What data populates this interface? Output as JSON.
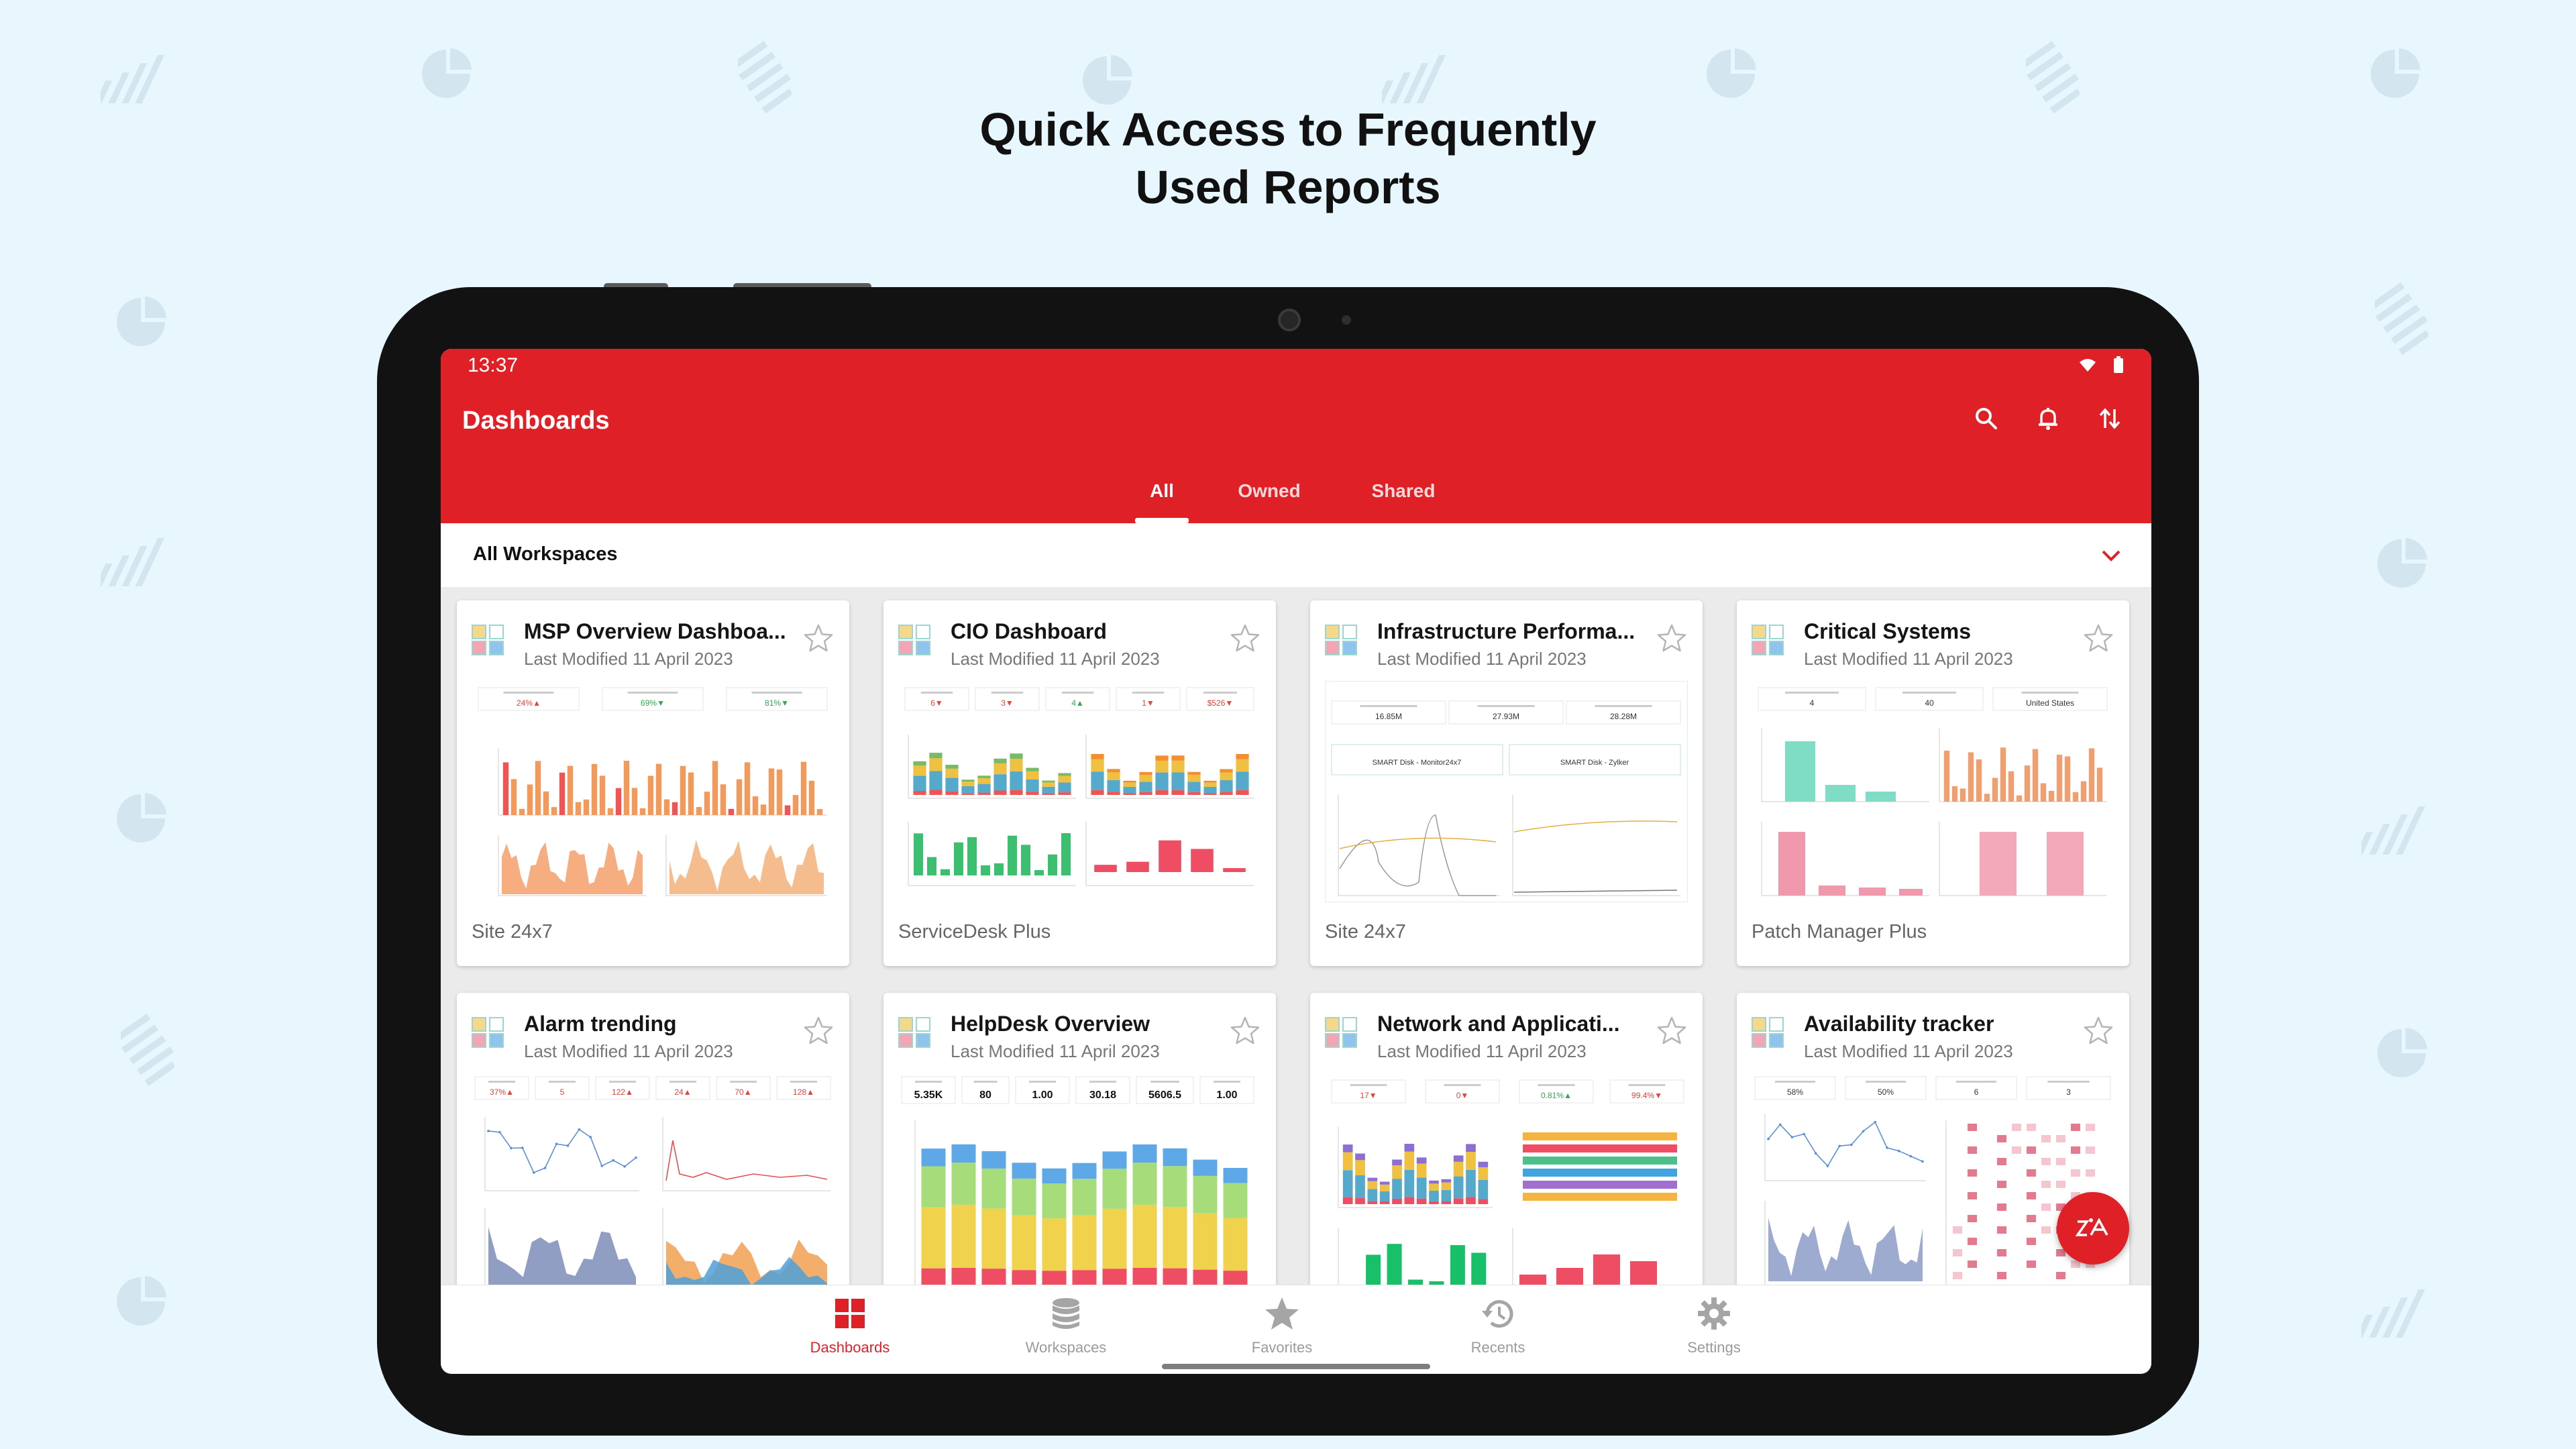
{
  "headline": {
    "line1": "Quick Access to Frequently",
    "line2": "Used Reports"
  },
  "status_bar": {
    "time": "13:37"
  },
  "app": {
    "title": "Dashboards",
    "actions": [
      "search-icon",
      "bell-icon",
      "sort-icon"
    ],
    "tabs": [
      {
        "label": "All",
        "active": true
      },
      {
        "label": "Owned",
        "active": false
      },
      {
        "label": "Shared",
        "active": false
      }
    ],
    "workspace_filter": "All Workspaces"
  },
  "cards": [
    {
      "title": "MSP Overview Dashboa...",
      "modified": "Last Modified 11 April 2023",
      "source": "Site 24x7"
    },
    {
      "title": "CIO Dashboard",
      "modified": "Last Modified 11 April 2023",
      "source": "ServiceDesk Plus"
    },
    {
      "title": "Infrastructure Performa...",
      "modified": "Last Modified 11 April 2023",
      "source": "Site 24x7"
    },
    {
      "title": "Critical Systems",
      "modified": "Last Modified 11 April 2023",
      "source": "Patch Manager Plus"
    },
    {
      "title": "Alarm trending",
      "modified": "Last Modified 11 April 2023",
      "source": ""
    },
    {
      "title": "HelpDesk Overview",
      "modified": "Last Modified 11 April 2023",
      "source": ""
    },
    {
      "title": "Network and Applicati...",
      "modified": "Last Modified 11 April 2023",
      "source": ""
    },
    {
      "title": "Availability tracker",
      "modified": "Last Modified 11 April 2023",
      "source": ""
    }
  ],
  "thumbnail_text": {
    "msp": [
      "24%▲",
      "69%▼",
      "81%▼"
    ],
    "cio": [
      "6▼",
      "3▼",
      "4▲",
      "1▼",
      "$526▼"
    ],
    "infra": [
      "16.85M",
      "27.93M",
      "28.28M",
      "SMART Disk - Monitor24x7",
      "SMART Disk - Zylker"
    ],
    "critical": [
      "4",
      "40",
      "United States"
    ],
    "alarm": [
      "37%▲",
      "5",
      "122▲",
      "24▲",
      "70▲",
      "128▲"
    ],
    "helpdesk": [
      "5.35K",
      "80",
      "1.00",
      "30.18",
      "5606.5",
      "1.00"
    ],
    "network": [
      "17▼",
      "0▼",
      "0.81%▲",
      "99.4%▼"
    ],
    "availability": [
      "58%",
      "50%",
      "6",
      "3"
    ]
  },
  "bottom_nav": [
    {
      "label": "Dashboards",
      "icon": "dashboards-icon",
      "active": true
    },
    {
      "label": "Workspaces",
      "icon": "database-icon",
      "active": false
    },
    {
      "label": "Favorites",
      "icon": "star-icon",
      "active": false
    },
    {
      "label": "Recents",
      "icon": "history-icon",
      "active": false
    },
    {
      "label": "Settings",
      "icon": "gear-icon",
      "active": false
    }
  ],
  "fab": {
    "icon": "zia-assistant-icon"
  },
  "colors": {
    "brand_red": "#e02027",
    "background": "#e8f6fd"
  }
}
